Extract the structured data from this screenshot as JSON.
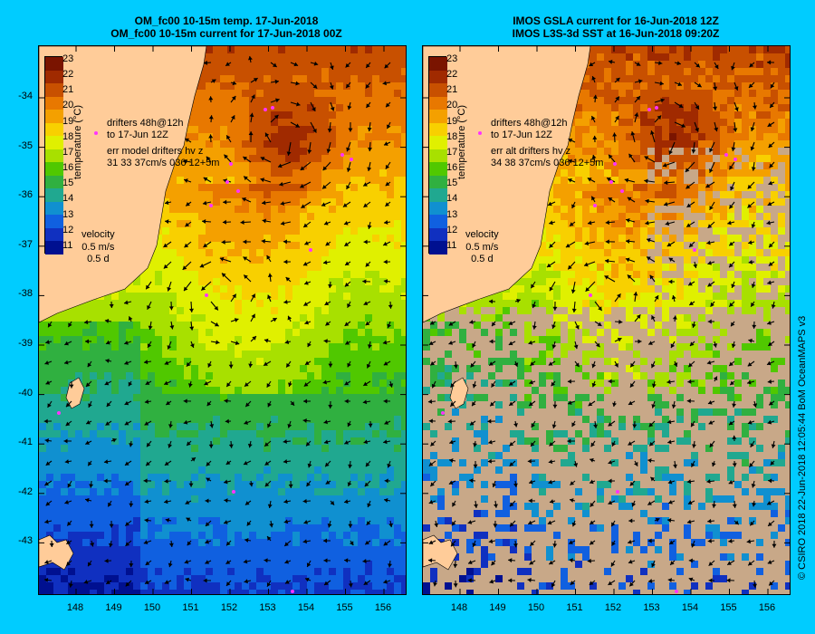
{
  "left_panel": {
    "title_line1": "OM_fc00 10-15m temp. 17-Jun-2018",
    "title_line2": "OM_fc00 10-15m current for 17-Jun-2018 00Z",
    "annotation_line1": "drifters 48h@12h",
    "annotation_line2": "to 17-Jun 12Z",
    "annotation_line3": "err model drifters hv z",
    "annotation_line4": "31 33 37cm/s 036 12+5m",
    "velocity_label": "velocity",
    "velocity_scale": "0.5 m/s",
    "velocity_time": "0.5 d"
  },
  "right_panel": {
    "title_line1": "IMOS GSLA current for 16-Jun-2018 12Z",
    "title_line2": "IMOS L3S-3d SST at 16-Jun-2018 09:20Z",
    "annotation_line1": "drifters 48h@12h",
    "annotation_line2": "to 17-Jun 12Z",
    "annotation_line3": "err alt drifters hv z",
    "annotation_line4": "34 38 37cm/s 036 12+5m",
    "velocity_label": "velocity",
    "velocity_scale": "0.5 m/s",
    "velocity_time": "0.5 d"
  },
  "colorbar": {
    "label": "temperature (°C)",
    "ticks": [
      "23",
      "22",
      "21",
      "20",
      "19",
      "18",
      "17",
      "16",
      "15",
      "14",
      "13",
      "12",
      "11"
    ],
    "colors": [
      "#7a1400",
      "#a02a00",
      "#c85000",
      "#e87800",
      "#f4a000",
      "#f8d000",
      "#e0f000",
      "#a8e000",
      "#50c800",
      "#30b040",
      "#20a890",
      "#1090d0",
      "#1060e0",
      "#1030c0",
      "#001090"
    ]
  },
  "y_axis": [
    "-34",
    "-35",
    "-36",
    "-37",
    "-38",
    "-39",
    "-40",
    "-41",
    "-42",
    "-43"
  ],
  "x_axis": [
    "148",
    "149",
    "150",
    "151",
    "152",
    "153",
    "154",
    "155",
    "156"
  ],
  "credit": "© CSIRO 2018  22-Jun-2018 12:05:44 BoM OceanMAPS v3",
  "colors": {
    "background": "#00ccff",
    "land": "#ffcc99",
    "no_data": "#c8a888",
    "arrow": "#000000",
    "drifter": "#ff33ff"
  }
}
